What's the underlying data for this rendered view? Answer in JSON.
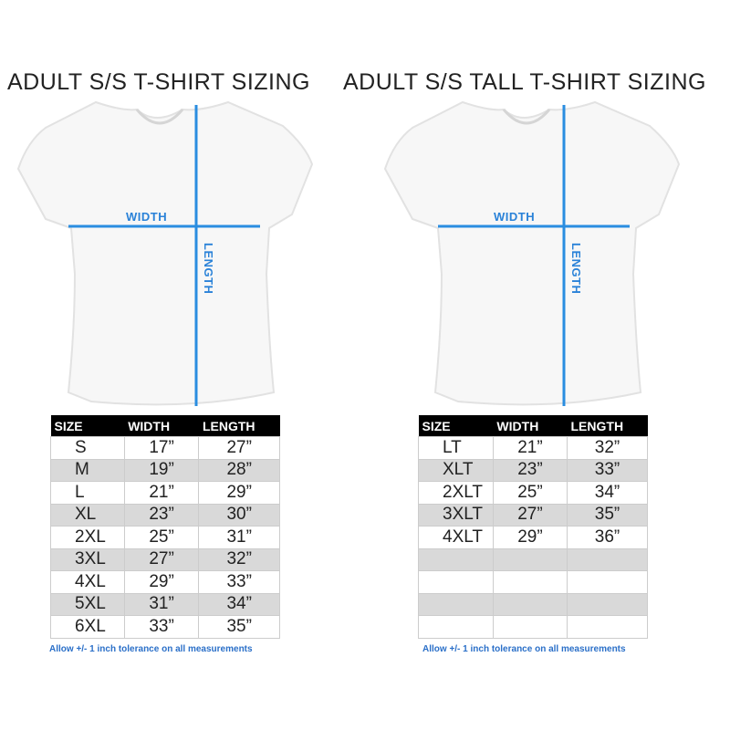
{
  "adult": {
    "title": "ADULT S/S T-SHIRT SIZING",
    "width_label": "WIDTH",
    "length_label": "LENGTH",
    "headers": [
      "SIZE",
      "WIDTH",
      "LENGTH"
    ],
    "rows": [
      [
        "S",
        "17”",
        "27”"
      ],
      [
        "M",
        "19”",
        "28”"
      ],
      [
        "L",
        "21”",
        "29”"
      ],
      [
        "XL",
        "23”",
        "30”"
      ],
      [
        "2XL",
        "25”",
        "31”"
      ],
      [
        "3XL",
        "27”",
        "32”"
      ],
      [
        "4XL",
        "29”",
        "33”"
      ],
      [
        "5XL",
        "31”",
        "34”"
      ],
      [
        "6XL",
        "33”",
        "35”"
      ]
    ],
    "note": "Allow +/- 1 inch tolerance on all measurements"
  },
  "tall": {
    "title": "ADULT S/S TALL T-SHIRT SIZING",
    "width_label": "WIDTH",
    "length_label": "LENGTH",
    "headers": [
      "SIZE",
      "WIDTH",
      "LENGTH"
    ],
    "rows": [
      [
        "LT",
        "21”",
        "32”"
      ],
      [
        "XLT",
        "23”",
        "33”"
      ],
      [
        "2XLT",
        "25”",
        "34”"
      ],
      [
        "3XLT",
        "27”",
        "35”"
      ],
      [
        "4XLT",
        "29”",
        "36”"
      ],
      [
        "",
        "",
        ""
      ],
      [
        "",
        "",
        ""
      ],
      [
        "",
        "",
        ""
      ],
      [
        "",
        "",
        ""
      ]
    ],
    "note": "Allow +/- 1 inch tolerance on all measurements"
  },
  "colors": {
    "measure_line": "#2a8de0",
    "header_bg": "#000000",
    "stripe": "#d9d9d9"
  }
}
